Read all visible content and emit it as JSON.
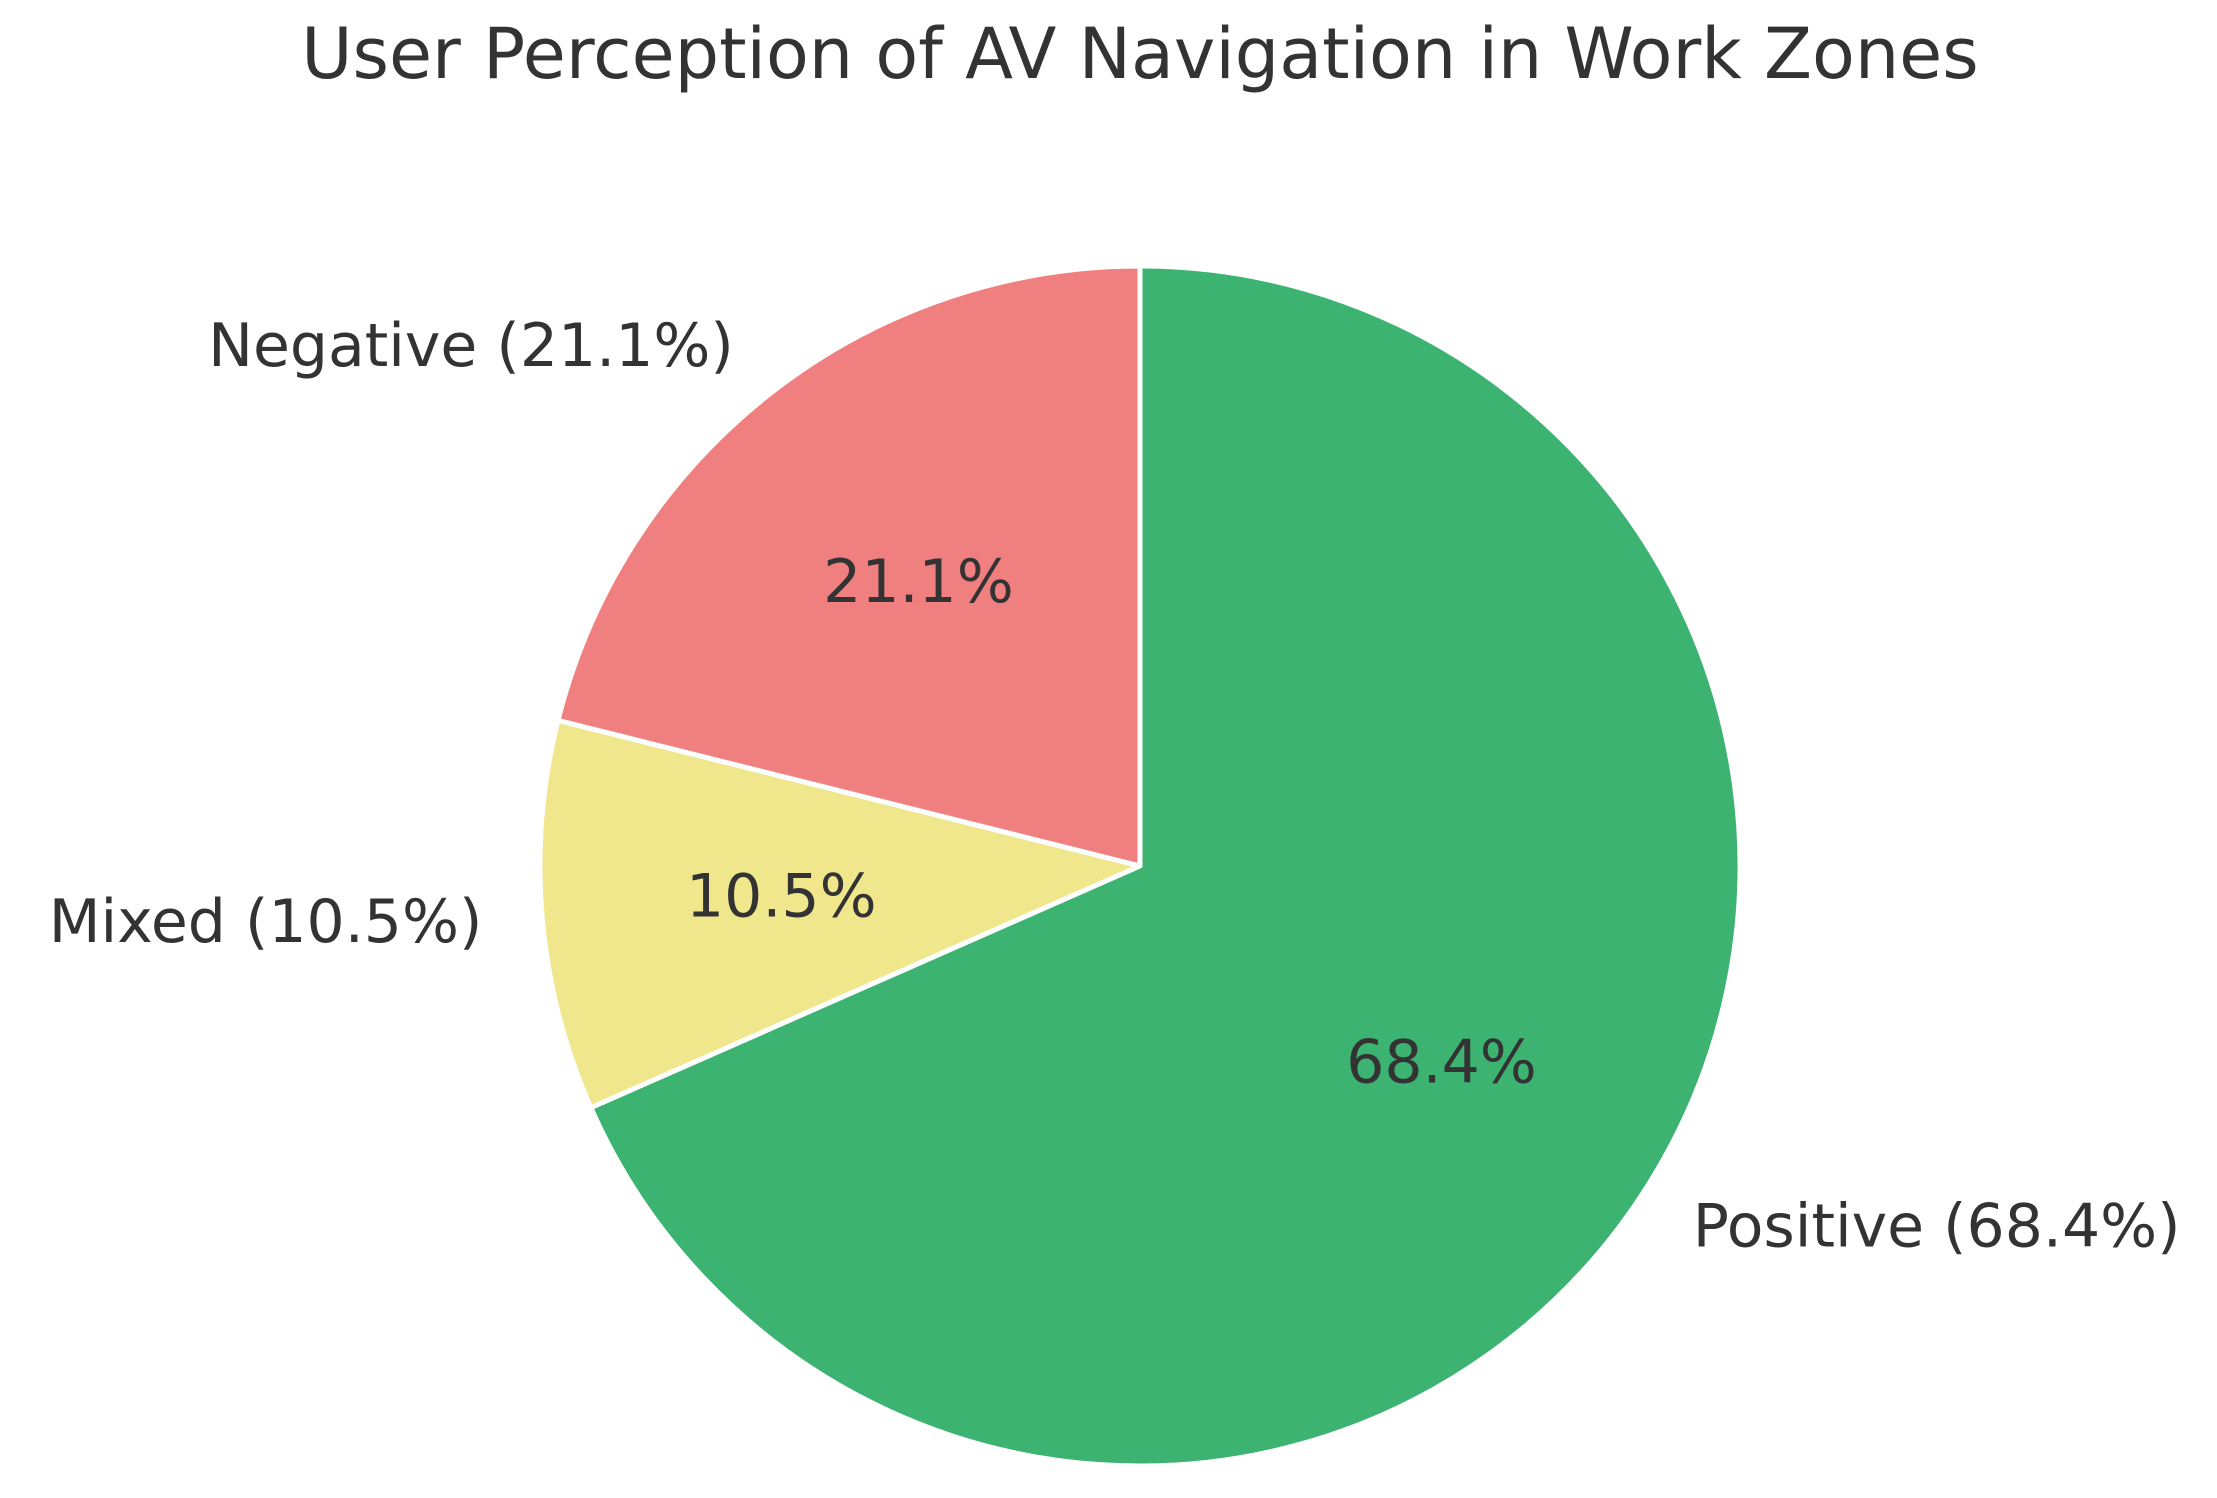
{
  "chart_data": {
    "type": "pie",
    "title": "User Perception of AV Navigation in Work Zones",
    "start_angle_deg": 90,
    "direction": "counterclockwise",
    "slices": [
      {
        "label": "Negative (21.1%)",
        "value": 21.1,
        "pct_label": "21.1%",
        "color": "#f08080"
      },
      {
        "label": "Mixed (10.5%)",
        "value": 10.5,
        "pct_label": "10.5%",
        "color": "#f0e68c"
      },
      {
        "label": "Positive (68.4%)",
        "value": 68.4,
        "pct_label": "68.4%",
        "color": "#3cb371"
      }
    ]
  }
}
